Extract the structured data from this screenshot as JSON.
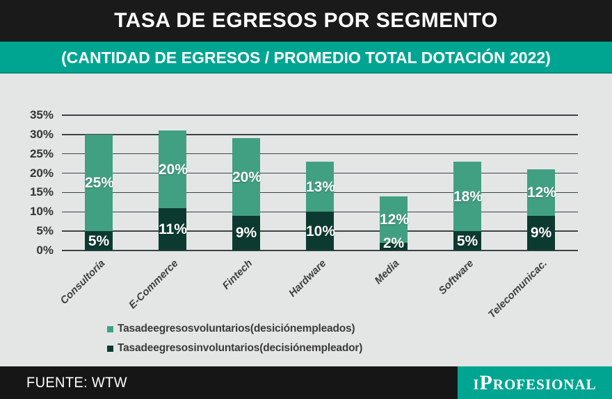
{
  "header": {
    "title": "TASA DE EGRESOS POR SEGMENTO"
  },
  "subtitle": "(CANTIDAD DE EGRESOS / PROMEDIO TOTAL DOTACIÓN 2022)",
  "footer": {
    "source": "FUENTE: WTW",
    "brand": "iProfesional"
  },
  "colors": {
    "header_bg": "#1a1a1a",
    "accent_teal": "#00a592",
    "panel_bg": "#e4e6e6",
    "grid_line": "#3c4242",
    "bar_voluntary": "#42a082",
    "bar_involuntary": "#0d3a30",
    "value_text": "#ffffff",
    "axis_text": "#333333"
  },
  "chart_data": {
    "type": "bar",
    "stacked": true,
    "title": "TASA DE EGRESOS POR SEGMENTO",
    "subtitle": "(CANTIDAD DE EGRESOS / PROMEDIO TOTAL DOTACIÓN 2022)",
    "categories": [
      "Consultoría",
      "E-Commerce",
      "Fintech",
      "Hardware",
      "Media",
      "Software",
      "Telecomunicac."
    ],
    "series": [
      {
        "name": "Tasa de egresos voluntarios (desición empleados)",
        "color": "#42a082",
        "values": [
          25,
          20,
          20,
          13,
          12,
          18,
          12
        ]
      },
      {
        "name": "Tasa de egresos involuntarios (decisión empleador)",
        "color": "#0d3a30",
        "values": [
          5,
          11,
          9,
          10,
          2,
          5,
          9
        ]
      }
    ],
    "stack_bottom_series": 1,
    "value_suffix": "%",
    "ylim": [
      0,
      35
    ],
    "yticks": [
      0,
      5,
      10,
      15,
      20,
      25,
      30,
      35
    ],
    "ytick_suffix": "%",
    "grid": true,
    "legend_position": "bottom-left"
  }
}
